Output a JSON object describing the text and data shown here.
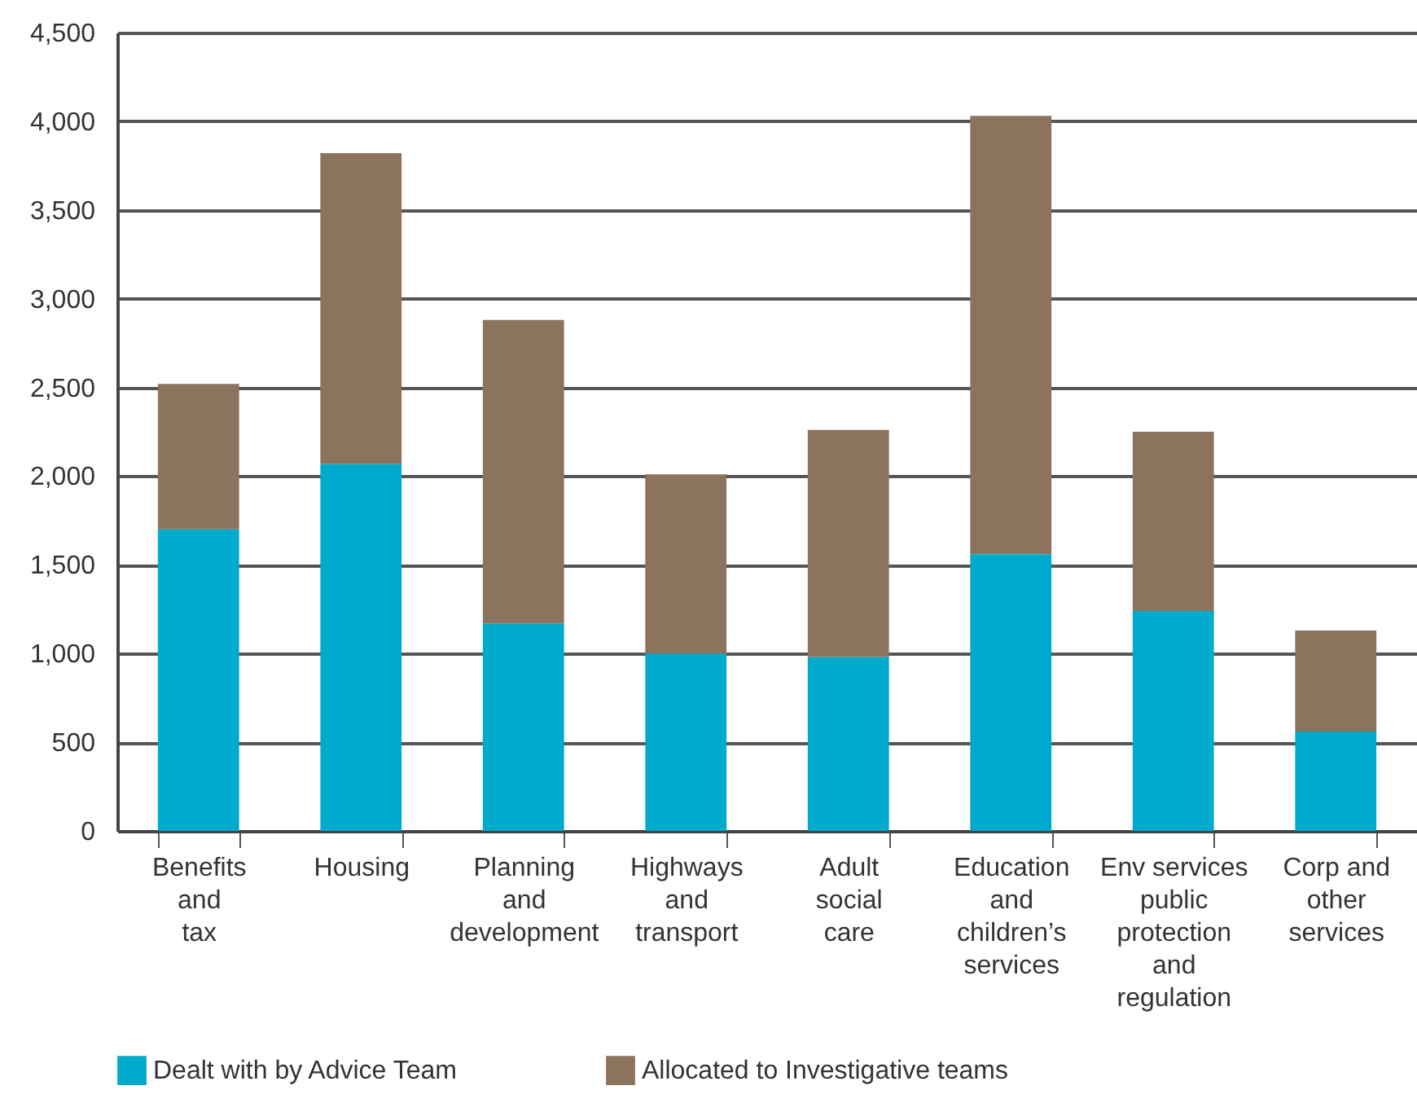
{
  "chart_data": {
    "type": "bar",
    "stacked": true,
    "categories": [
      "Benefits\nand\ntax",
      "Housing",
      "Planning\nand\ndevelopment",
      "Highways\nand\ntransport",
      "Adult\nsocial\ncare",
      "Education\nand\nchildren’s\nservices",
      "Env services\npublic\nprotection\nand\nregulation",
      "Corp and\nother\nservices"
    ],
    "series": [
      {
        "name": "Dealt with by Advice Team",
        "color": "#00aacd",
        "values": [
          1700,
          2070,
          1170,
          1000,
          980,
          1560,
          1240,
          560
        ]
      },
      {
        "name": "Allocated to Investigative teams",
        "color": "#8c735e",
        "values": [
          820,
          1750,
          1710,
          1010,
          1280,
          2470,
          1010,
          570
        ]
      }
    ],
    "ylim": [
      0,
      4500
    ],
    "yticks": [
      0,
      500,
      {
        "value": 1000,
        "label": "1,000"
      },
      {
        "value": 1500,
        "label": "1,500"
      },
      {
        "value": 2000,
        "label": "2,000"
      },
      {
        "value": 2500,
        "label": "2,500"
      },
      {
        "value": 3000,
        "label": "3,000"
      },
      {
        "value": 3500,
        "label": "3,500"
      },
      {
        "value": 4000,
        "label": "4,000"
      },
      {
        "value": 4500,
        "label": "4,500"
      }
    ],
    "grid": "y",
    "legend": "bottom"
  }
}
